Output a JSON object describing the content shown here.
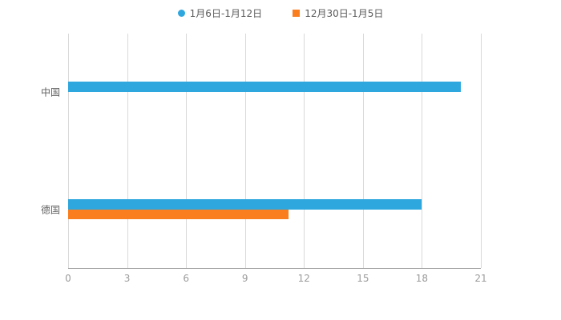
{
  "chart_data": {
    "type": "bar",
    "orientation": "horizontal",
    "title": "",
    "categories": [
      "中国",
      "德国"
    ],
    "series": [
      {
        "name": "1月6日-1月12日",
        "color": "#2EA7DF",
        "marker": "circle",
        "values": [
          20,
          18
        ]
      },
      {
        "name": "12月30日-1月5日",
        "color": "#FA7D1E",
        "marker": "square",
        "values": [
          0,
          11.2
        ]
      }
    ],
    "xlim": [
      0,
      21
    ],
    "xticks": [
      0,
      3,
      6,
      9,
      12,
      15,
      18,
      21
    ],
    "grid": true,
    "legend_position": "top",
    "background_color": "#ffffff",
    "grid_color": "#d9d9d9",
    "axis_color": "#9e9e9e",
    "tick_label_color": "#9b9b9b",
    "category_label_color": "#5f5f5f",
    "legend_label_color": "#595959"
  }
}
